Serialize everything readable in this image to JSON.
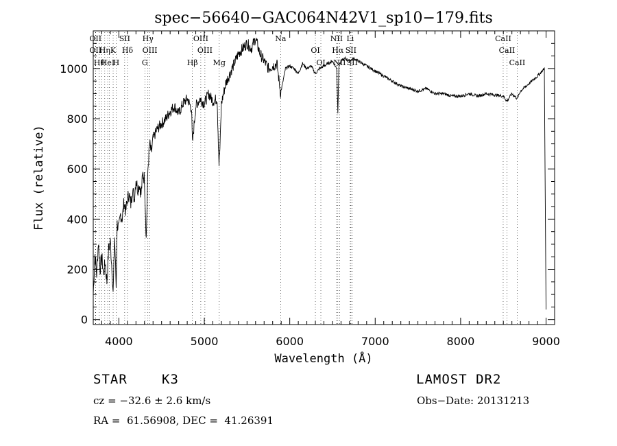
{
  "chart_data": {
    "type": "line",
    "title": "spec−56640−GAC064N42V1_sp10−179.fits",
    "xlabel": "Wavelength (Å)",
    "ylabel": "Flux (relative)",
    "xlim": [
      3700,
      9100
    ],
    "ylim": [
      -20,
      1150
    ],
    "xticks": [
      "4000",
      "5000",
      "6000",
      "7000",
      "8000",
      "9000"
    ],
    "yticks": [
      "0",
      "200",
      "400",
      "600",
      "800",
      "1000"
    ],
    "series": [
      {
        "x": [
          3700,
          3720,
          3740,
          3760,
          3780,
          3800,
          3820,
          3840,
          3860,
          3880,
          3900,
          3920,
          3933,
          3950,
          3968,
          3980,
          4000,
          4020,
          4040,
          4060,
          4080,
          4101,
          4120,
          4140,
          4160,
          4180,
          4200,
          4220,
          4240,
          4260,
          4280,
          4300,
          4320,
          4340,
          4360,
          4380,
          4400,
          4450,
          4500,
          4550,
          4600,
          4650,
          4700,
          4750,
          4800,
          4850,
          4861,
          4900,
          4950,
          5000,
          5050,
          5100,
          5150,
          5172,
          5183,
          5200,
          5250,
          5300,
          5350,
          5400,
          5450,
          5500,
          5550,
          5600,
          5650,
          5700,
          5750,
          5800,
          5850,
          5893,
          5950,
          6000,
          6050,
          6100,
          6150,
          6200,
          6250,
          6300,
          6350,
          6400,
          6450,
          6500,
          6550,
          6563,
          6575,
          6600,
          6650,
          6700,
          6750,
          6800,
          6900,
          7000,
          7100,
          7200,
          7300,
          7400,
          7500,
          7600,
          7700,
          7800,
          7900,
          8000,
          8100,
          8200,
          8300,
          8400,
          8500,
          8542,
          8600,
          8662,
          8700,
          8800,
          8900,
          8980,
          9000
        ],
        "y": [
          100,
          260,
          180,
          310,
          200,
          250,
          180,
          230,
          150,
          280,
          310,
          200,
          100,
          330,
          130,
          380,
          360,
          420,
          400,
          470,
          430,
          480,
          500,
          460,
          520,
          480,
          560,
          520,
          540,
          500,
          580,
          560,
          320,
          600,
          700,
          660,
          720,
          760,
          780,
          800,
          830,
          850,
          820,
          860,
          880,
          840,
          700,
          850,
          880,
          860,
          900,
          870,
          880,
          620,
          680,
          860,
          940,
          980,
          1020,
          1060,
          1080,
          1100,
          1080,
          1120,
          1060,
          1030,
          1000,
          1010,
          1020,
          900,
          1000,
          1010,
          1000,
          980,
          1020,
          1000,
          1010,
          980,
          1000,
          1010,
          1020,
          1030,
          1000,
          820,
          1010,
          1030,
          1040,
          1030,
          1040,
          1030,
          1010,
          990,
          970,
          950,
          930,
          920,
          910,
          920,
          900,
          900,
          890,
          890,
          900,
          890,
          900,
          895,
          890,
          870,
          900,
          880,
          910,
          940,
          970,
          1000,
          40
        ]
      }
    ],
    "lines": [
      {
        "x": 3726,
        "labels": [
          "OII",
          "OII"
        ]
      },
      {
        "x": 3729,
        "labels": []
      },
      {
        "x": 3771,
        "labels": [
          "Hθ"
        ]
      },
      {
        "x": 3798,
        "labels": []
      },
      {
        "x": 3835,
        "labels": [
          "Hη"
        ]
      },
      {
        "x": 3869,
        "labels": [
          "HeI"
        ]
      },
      {
        "x": 3889,
        "labels": []
      },
      {
        "x": 3933,
        "labels": [
          "K"
        ]
      },
      {
        "x": 3968,
        "labels": [
          "H"
        ]
      },
      {
        "x": 4068,
        "labels": [
          "SII"
        ]
      },
      {
        "x": 4101,
        "labels": [
          "Hδ"
        ]
      },
      {
        "x": 4304,
        "labels": [
          "G"
        ]
      },
      {
        "x": 4340,
        "labels": [
          "Hγ"
        ]
      },
      {
        "x": 4363,
        "labels": [
          "OIII"
        ]
      },
      {
        "x": 4861,
        "labels": [
          "Hβ"
        ]
      },
      {
        "x": 4959,
        "labels": [
          "OIII"
        ]
      },
      {
        "x": 5007,
        "labels": [
          "OIII"
        ]
      },
      {
        "x": 5175,
        "labels": [
          "Mg"
        ]
      },
      {
        "x": 5893,
        "labels": [
          "Na"
        ]
      },
      {
        "x": 6300,
        "labels": [
          "OI"
        ]
      },
      {
        "x": 6364,
        "labels": [
          "OI"
        ]
      },
      {
        "x": 6548,
        "labels": [
          "NII"
        ]
      },
      {
        "x": 6563,
        "labels": [
          "Hα"
        ]
      },
      {
        "x": 6583,
        "labels": [
          "NII"
        ]
      },
      {
        "x": 6708,
        "labels": [
          "Li"
        ]
      },
      {
        "x": 6716,
        "labels": [
          "SII"
        ]
      },
      {
        "x": 6731,
        "labels": [
          "SII"
        ]
      },
      {
        "x": 8498,
        "labels": [
          "CaII"
        ]
      },
      {
        "x": 8542,
        "labels": [
          "CaII"
        ]
      },
      {
        "x": 8662,
        "labels": [
          "CaII"
        ]
      }
    ]
  },
  "info": {
    "class": "STAR",
    "subclass": "K3",
    "survey": "LAMOST DR2",
    "cz": "cz = −32.6 ± 2.6 km/s",
    "obs_date": "Obs−Date: 20131213",
    "coords": "RA =  61.56908, DEC =  41.26391"
  }
}
